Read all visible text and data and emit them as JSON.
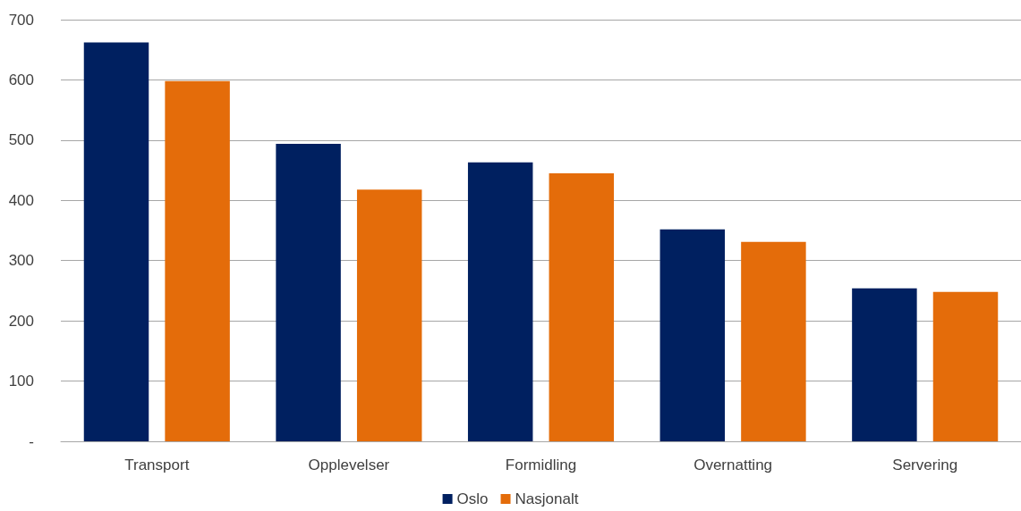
{
  "chart_data": {
    "type": "bar",
    "categories": [
      "Transport",
      "Opplevelser",
      "Formidling",
      "Overnatting",
      "Servering"
    ],
    "series": [
      {
        "name": "Oslo",
        "color": "#002060",
        "values": [
          662,
          494,
          463,
          352,
          254
        ]
      },
      {
        "name": "Nasjonalt",
        "color": "#e46c0a",
        "values": [
          598,
          418,
          445,
          331,
          248
        ]
      }
    ],
    "ylim": [
      0,
      700
    ],
    "yticks": [
      {
        "value": 0,
        "label": "-"
      },
      100,
      200,
      300,
      400,
      500,
      600,
      700
    ],
    "grid": "y",
    "legend": "bottom"
  }
}
